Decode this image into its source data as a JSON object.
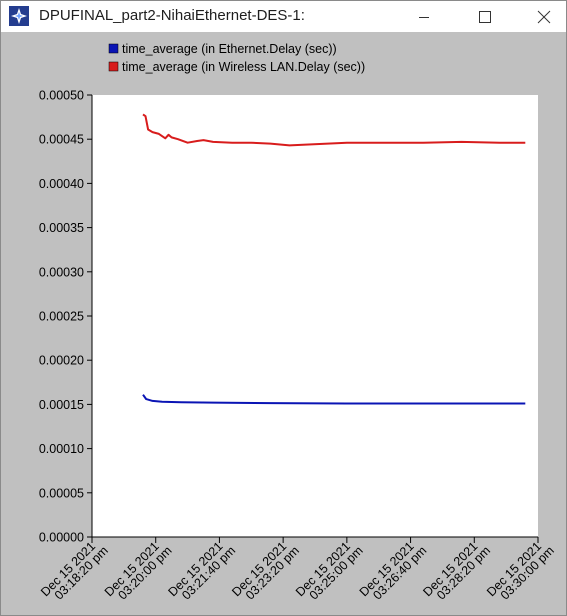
{
  "window": {
    "title": "DPUFINAL_part2-NihaiEthernet-DES-1:",
    "icon": "opnet-star-icon",
    "controls": [
      "minimize-icon",
      "maximize-icon",
      "close-icon"
    ]
  },
  "colors": {
    "ethernet": "#0a14b4",
    "wireless": "#d81c1c",
    "plot_background": "#ffffff",
    "frame_background": "#c0c0c0"
  },
  "chart_data": {
    "type": "line",
    "title": "",
    "xlabel": "",
    "ylabel": "",
    "ylim": [
      0,
      0.0005
    ],
    "y_ticks": [
      "0.00050",
      "0.00045",
      "0.00040",
      "0.00035",
      "0.00030",
      "0.00025",
      "0.00020",
      "0.00015",
      "0.00010",
      "0.00005",
      "0.00000"
    ],
    "x_ticks": [
      {
        "date": "Dec 15 2021",
        "time": "03:18:20 pm"
      },
      {
        "date": "Dec 15 2021",
        "time": "03:20:00 pm"
      },
      {
        "date": "Dec 15 2021",
        "time": "03:21:40 pm"
      },
      {
        "date": "Dec 15 2021",
        "time": "03:23:20 pm"
      },
      {
        "date": "Dec 15 2021",
        "time": "03:25:00 pm"
      },
      {
        "date": "Dec 15 2021",
        "time": "03:26:40 pm"
      },
      {
        "date": "Dec 15 2021",
        "time": "03:28:20 pm"
      },
      {
        "date": "Dec 15 2021",
        "time": "03:30:00 pm"
      }
    ],
    "grid": false,
    "legend_position": "top-left",
    "series": [
      {
        "name": "time_average (in Ethernet.Delay (sec))",
        "color": "#0a14b4",
        "points": [
          [
            "15:19:40",
            0.000161
          ],
          [
            "15:19:45",
            0.000156
          ],
          [
            "15:19:55",
            0.000154
          ],
          [
            "15:20:10",
            0.000153
          ],
          [
            "15:20:40",
            0.0001525
          ],
          [
            "15:21:30",
            0.000152
          ],
          [
            "15:23:00",
            0.0001515
          ],
          [
            "15:25:00",
            0.000151
          ],
          [
            "15:27:00",
            0.000151
          ],
          [
            "15:29:40",
            0.000151
          ]
        ]
      },
      {
        "name": "time_average (in Wireless LAN.Delay (sec))",
        "color": "#d81c1c",
        "points": [
          [
            "15:19:40",
            0.000478
          ],
          [
            "15:19:44",
            0.000476
          ],
          [
            "15:19:48",
            0.000461
          ],
          [
            "15:19:55",
            0.000458
          ],
          [
            "15:20:05",
            0.000456
          ],
          [
            "15:20:15",
            0.000451
          ],
          [
            "15:20:20",
            0.000455
          ],
          [
            "15:20:25",
            0.000452
          ],
          [
            "15:20:35",
            0.00045
          ],
          [
            "15:20:50",
            0.000446
          ],
          [
            "15:21:05",
            0.000448
          ],
          [
            "15:21:15",
            0.000449
          ],
          [
            "15:21:30",
            0.000447
          ],
          [
            "15:22:00",
            0.000446
          ],
          [
            "15:22:30",
            0.000446
          ],
          [
            "15:23:00",
            0.000445
          ],
          [
            "15:23:30",
            0.000443
          ],
          [
            "15:24:00",
            0.000444
          ],
          [
            "15:24:30",
            0.000445
          ],
          [
            "15:25:00",
            0.000446
          ],
          [
            "15:25:30",
            0.000446
          ],
          [
            "15:26:00",
            0.000446
          ],
          [
            "15:27:00",
            0.000446
          ],
          [
            "15:28:00",
            0.000447
          ],
          [
            "15:29:00",
            0.000446
          ],
          [
            "15:29:40",
            0.000446
          ]
        ]
      }
    ]
  }
}
